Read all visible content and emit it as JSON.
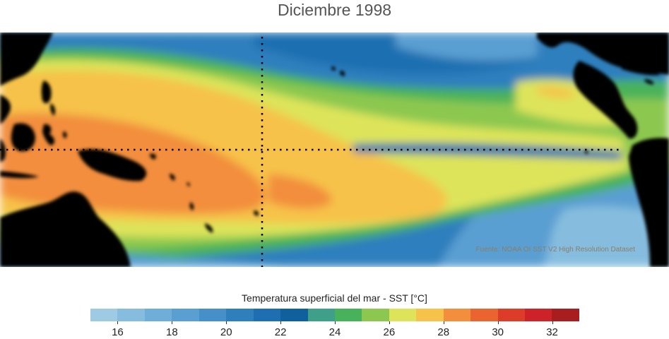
{
  "title": "Diciembre 1998",
  "source": "Fuente: NOAA OI SST V2 High Resolution Dataset",
  "colorbar": {
    "label": "Temperatura superficial del mar - SST  [°C]",
    "ticks": [
      "16",
      "18",
      "20",
      "22",
      "24",
      "26",
      "28",
      "30",
      "32"
    ],
    "tick_values": [
      16,
      18,
      20,
      22,
      24,
      26,
      28,
      30,
      32
    ],
    "range": [
      15,
      33
    ],
    "colors": [
      "#9ecbe3",
      "#86bddf",
      "#6eaed9",
      "#5a9fd2",
      "#4590c8",
      "#2f7fbd",
      "#1e6fb1",
      "#10609e",
      "#3fa08a",
      "#48b25a",
      "#8cc850",
      "#dde45a",
      "#f6c24a",
      "#f28e3c",
      "#ea6430",
      "#dc3c28",
      "#cc2228",
      "#a81e1e"
    ]
  },
  "map_colors": {
    "land": "#000000",
    "sea_warmest": "#f28e3c",
    "sea_warm": "#f6c24a",
    "sea_mild": "#dde45a",
    "sea_green": "#8cc850",
    "sea_teal": "#48b25a",
    "sea_cool": "#2f7fbd",
    "sea_cold": "#6eaed9"
  },
  "reference_lines": [
    "equator",
    "180° meridian"
  ]
}
